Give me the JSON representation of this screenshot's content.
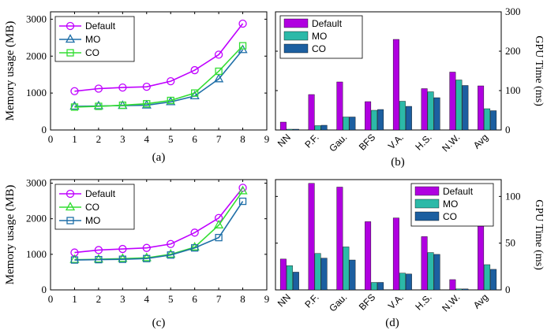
{
  "colors": {
    "default": "#bf00ff",
    "mo": "#1f6fa8",
    "co": "#33dd33",
    "bar_default": "#b000e0",
    "bar_mo": "#2cb9a8",
    "bar_co": "#1c5fa0"
  },
  "chart_data": [
    {
      "id": "a",
      "type": "line",
      "caption": "(a)",
      "ylabel": "Memory usage (MB)",
      "x": [
        1,
        2,
        3,
        4,
        5,
        6,
        7,
        8
      ],
      "xticks": [
        "0",
        "1",
        "2",
        "3",
        "4",
        "5",
        "6",
        "7",
        "8",
        "9"
      ],
      "xlim": [
        0,
        9
      ],
      "yticks": [
        "0",
        "1000",
        "2000",
        "3000"
      ],
      "ylim": [
        0,
        3200
      ],
      "series": [
        {
          "key": "default",
          "name": "Default",
          "marker": "circle",
          "values": [
            1050,
            1120,
            1150,
            1170,
            1320,
            1620,
            2040,
            2880
          ]
        },
        {
          "key": "mo",
          "name": "MO",
          "marker": "triangle",
          "values": [
            640,
            650,
            660,
            670,
            760,
            920,
            1380,
            2170
          ]
        },
        {
          "key": "co",
          "name": "CO",
          "marker": "square",
          "values": [
            620,
            640,
            670,
            710,
            800,
            1000,
            1590,
            2280
          ]
        }
      ],
      "legend_order": [
        "default",
        "mo",
        "co"
      ]
    },
    {
      "id": "b",
      "type": "bar",
      "caption": "(b)",
      "ylabel": "GPU Time (ms)",
      "categories": [
        "NN",
        "P.F.",
        "Gau.",
        "BFS",
        "V.A.",
        "H.S.",
        "N.W.",
        "Avg"
      ],
      "yticks": [
        "0",
        "100",
        "200",
        "300"
      ],
      "ylim": [
        0,
        300
      ],
      "series": [
        {
          "key": "default",
          "name": "Default",
          "values": [
            20,
            90,
            122,
            72,
            230,
            105,
            147,
            112
          ]
        },
        {
          "key": "mo",
          "name": "MO",
          "values": [
            2,
            11,
            33,
            50,
            73,
            97,
            127,
            54
          ]
        },
        {
          "key": "co",
          "name": "CO",
          "values": [
            2,
            12,
            33,
            52,
            60,
            82,
            113,
            49
          ]
        }
      ],
      "legend_order": [
        "default",
        "mo",
        "co"
      ]
    },
    {
      "id": "c",
      "type": "line",
      "caption": "(c)",
      "ylabel": "Memory usage (MB)",
      "x": [
        1,
        2,
        3,
        4,
        5,
        6,
        7,
        8
      ],
      "xticks": [
        "0",
        "1",
        "2",
        "3",
        "4",
        "5",
        "6",
        "7",
        "8",
        "9"
      ],
      "xlim": [
        0,
        9
      ],
      "yticks": [
        "0",
        "1000",
        "2000",
        "3000"
      ],
      "ylim": [
        0,
        3100
      ],
      "series": [
        {
          "key": "default",
          "name": "Default",
          "marker": "circle",
          "values": [
            1050,
            1120,
            1150,
            1180,
            1290,
            1610,
            2020,
            2870
          ]
        },
        {
          "key": "co",
          "name": "CO",
          "marker": "triangle",
          "values": [
            850,
            860,
            880,
            900,
            1000,
            1200,
            1820,
            2780
          ]
        },
        {
          "key": "mo",
          "name": "MO",
          "marker": "square",
          "values": [
            840,
            850,
            860,
            880,
            980,
            1180,
            1470,
            2490
          ]
        }
      ],
      "legend_order": [
        "default",
        "co",
        "mo"
      ]
    },
    {
      "id": "d",
      "type": "bar",
      "caption": "(d)",
      "ylabel": "GPU Time (ms)",
      "categories": [
        "NN",
        "P.F.",
        "Gau.",
        "BFS",
        "V.A.",
        "H.S.",
        "N.W.",
        "Avg"
      ],
      "yticks": [
        "0",
        "50",
        "100"
      ],
      "ylim": [
        0,
        118
      ],
      "series": [
        {
          "key": "default",
          "name": "Default",
          "values": [
            33,
            114,
            110,
            73,
            77,
            57,
            11,
            72
          ]
        },
        {
          "key": "mo",
          "name": "MO",
          "values": [
            26,
            39,
            46,
            8,
            18,
            40,
            1,
            27
          ]
        },
        {
          "key": "co",
          "name": "CO",
          "values": [
            19,
            34,
            32,
            8,
            17,
            38,
            1,
            22
          ]
        }
      ],
      "legend_order": [
        "default",
        "mo",
        "co"
      ]
    }
  ]
}
